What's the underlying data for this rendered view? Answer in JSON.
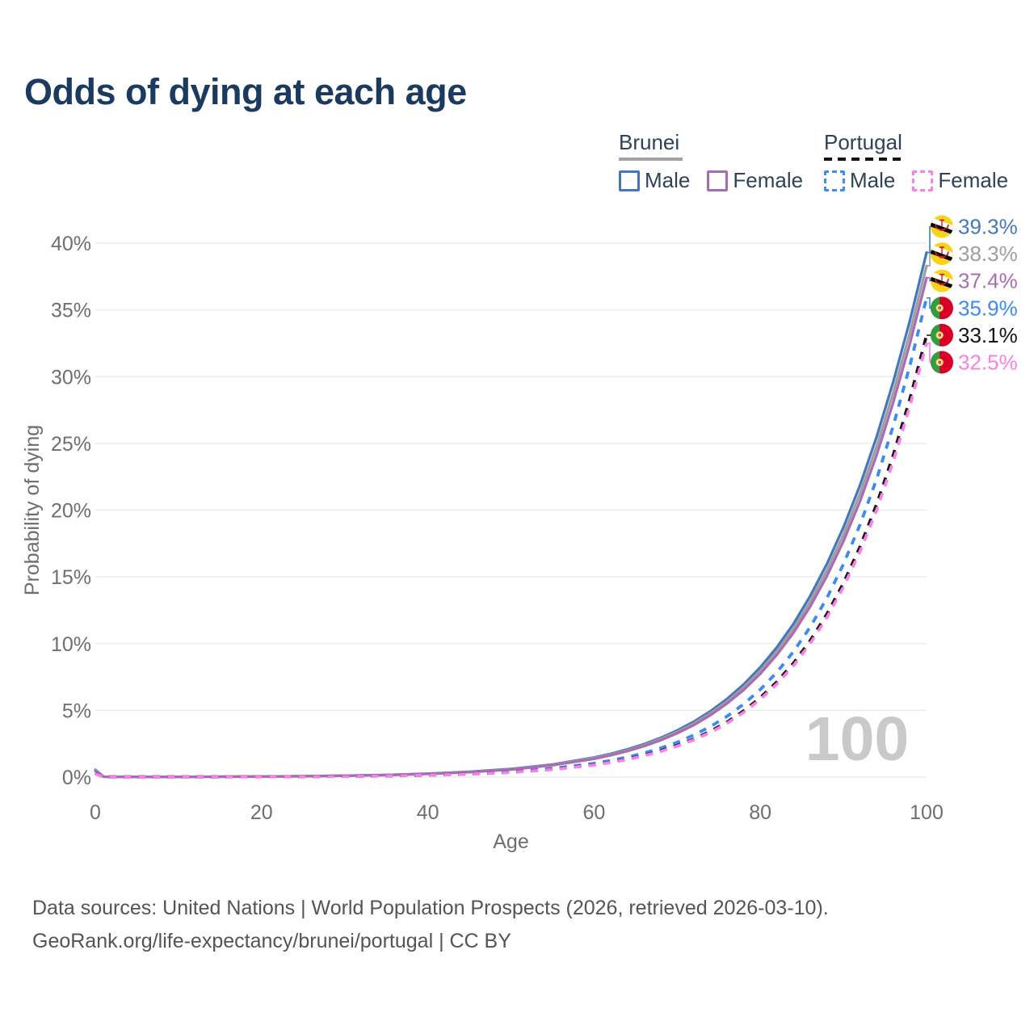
{
  "title": "Odds of dying at each age",
  "legend": {
    "brunei": {
      "title": "Brunei",
      "male_label": "Male",
      "female_label": "Female"
    },
    "portugal": {
      "title": "Portugal",
      "male_label": "Male",
      "female_label": "Female"
    }
  },
  "watermark": "100",
  "footer": {
    "line1": "Data sources: United Nations | World Population Prospects (2026, retrieved 2026-03-10).",
    "line2": "GeoRank.org/life-expectancy/brunei/portugal | CC BY"
  },
  "colors": {
    "title_text": "#1b3a5f",
    "legend_text": "#2f4258",
    "axis_text": "#6e6e6e",
    "gridline": "#ececec",
    "watermark": "#c9c9c9",
    "footer_text": "#545454",
    "brunei_underline": "#a3a3a3",
    "portugal_underline": "#141414"
  },
  "chart_data": {
    "type": "line",
    "title": "Odds of dying at each age",
    "xlabel": "Age",
    "ylabel": "Probability of dying",
    "xlim": [
      0,
      100
    ],
    "ylim": [
      0,
      40
    ],
    "x_ticks": [
      0,
      20,
      40,
      60,
      80,
      100
    ],
    "y_ticks": [
      0,
      5,
      10,
      15,
      20,
      25,
      30,
      35,
      40
    ],
    "y_tick_suffix": "%",
    "grid": "horizontal",
    "legend_position": "top-right",
    "ages": [
      0,
      1,
      5,
      10,
      15,
      20,
      25,
      30,
      35,
      40,
      45,
      50,
      55,
      60,
      62,
      64,
      66,
      68,
      70,
      72,
      74,
      76,
      78,
      80,
      82,
      84,
      86,
      88,
      90,
      92,
      94,
      96,
      98,
      100
    ],
    "series": [
      {
        "name": "Brunei Male",
        "country": "Brunei",
        "sex": "male",
        "color": "#4377bd",
        "dash": "solid",
        "flag": "brunei",
        "end_label": "39.3%",
        "end_value": 39.3,
        "values": [
          0.55,
          0.03,
          0.02,
          0.02,
          0.03,
          0.05,
          0.07,
          0.11,
          0.16,
          0.26,
          0.4,
          0.61,
          0.95,
          1.47,
          1.74,
          2.08,
          2.47,
          2.94,
          3.5,
          4.16,
          4.94,
          5.86,
          6.95,
          8.23,
          9.73,
          11.5,
          13.56,
          15.95,
          18.71,
          21.88,
          25.51,
          29.62,
          34.2,
          39.3
        ]
      },
      {
        "name": "Brunei Total",
        "country": "Brunei",
        "sex": "both",
        "color": "#9e9e9e",
        "dash": "solid",
        "flag": "brunei",
        "end_label": "38.3%",
        "end_value": 38.3,
        "values": [
          0.5,
          0.03,
          0.02,
          0.02,
          0.03,
          0.04,
          0.07,
          0.1,
          0.16,
          0.25,
          0.38,
          0.59,
          0.92,
          1.42,
          1.69,
          2.01,
          2.39,
          2.85,
          3.38,
          4.02,
          4.78,
          5.67,
          6.73,
          7.97,
          9.43,
          11.14,
          13.14,
          15.47,
          18.15,
          21.25,
          24.79,
          28.8,
          33.29,
          38.3
        ]
      },
      {
        "name": "Brunei Female",
        "country": "Brunei",
        "sex": "female",
        "color": "#a96bb4",
        "dash": "solid",
        "flag": "brunei",
        "end_label": "37.4%",
        "end_value": 37.4,
        "values": [
          0.45,
          0.03,
          0.02,
          0.02,
          0.03,
          0.04,
          0.06,
          0.1,
          0.15,
          0.24,
          0.37,
          0.57,
          0.89,
          1.37,
          1.64,
          1.95,
          2.32,
          2.76,
          3.28,
          3.9,
          4.64,
          5.51,
          6.53,
          7.74,
          9.16,
          10.82,
          12.77,
          15.04,
          17.66,
          20.68,
          24.14,
          28.07,
          32.48,
          37.4
        ]
      },
      {
        "name": "Portugal Male",
        "country": "Portugal",
        "sex": "male",
        "color": "#3b8bf4",
        "dash": "dashed",
        "flag": "portugal",
        "end_label": "35.9%",
        "end_value": 35.9,
        "values": [
          0.3,
          0.02,
          0.02,
          0.02,
          0.02,
          0.03,
          0.04,
          0.06,
          0.1,
          0.16,
          0.25,
          0.4,
          0.65,
          1.03,
          1.24,
          1.5,
          1.8,
          2.17,
          2.61,
          3.15,
          3.79,
          4.55,
          5.47,
          6.56,
          7.86,
          9.41,
          11.24,
          13.4,
          15.95,
          18.91,
          22.35,
          26.32,
          30.83,
          35.9
        ]
      },
      {
        "name": "Portugal Total",
        "country": "Portugal",
        "sex": "both",
        "color": "#141414",
        "dash": "dashed",
        "flag": "portugal",
        "end_label": "33.1%",
        "end_value": 33.1,
        "values": [
          0.27,
          0.02,
          0.02,
          0.02,
          0.02,
          0.03,
          0.04,
          0.06,
          0.09,
          0.14,
          0.23,
          0.37,
          0.59,
          0.93,
          1.12,
          1.35,
          1.63,
          1.97,
          2.37,
          2.85,
          3.43,
          4.12,
          4.96,
          5.95,
          7.14,
          8.55,
          10.22,
          12.2,
          14.53,
          17.27,
          20.45,
          24.13,
          28.34,
          33.1
        ]
      },
      {
        "name": "Portugal Female",
        "country": "Portugal",
        "sex": "female",
        "color": "#fb7fe7",
        "dash": "dashed",
        "flag": "portugal",
        "end_label": "32.5%",
        "end_value": 32.5,
        "values": [
          0.25,
          0.02,
          0.01,
          0.01,
          0.02,
          0.02,
          0.04,
          0.05,
          0.09,
          0.14,
          0.22,
          0.36,
          0.57,
          0.91,
          1.1,
          1.32,
          1.6,
          1.92,
          2.32,
          2.79,
          3.35,
          4.03,
          4.85,
          5.82,
          6.98,
          8.36,
          10.0,
          11.94,
          14.23,
          16.91,
          20.03,
          23.65,
          27.8,
          32.5
        ]
      }
    ]
  }
}
